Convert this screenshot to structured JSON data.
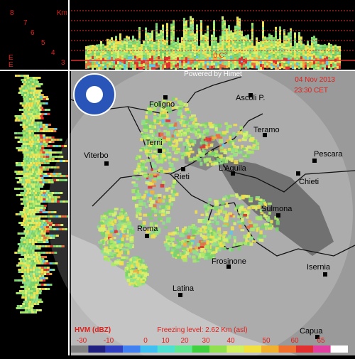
{
  "header": {
    "powered": "Powered by Himet",
    "date": "04 Nov 2013",
    "time": "23:30 CET"
  },
  "profile": {
    "unit": "Km",
    "heights": [
      "8",
      "7",
      "6",
      "5",
      "4",
      "3"
    ],
    "side_labels": [
      "E",
      "E"
    ],
    "freezing_mark": "0 C°"
  },
  "cities": [
    {
      "label": "Foligno"
    },
    {
      "label": "Ascoli P."
    },
    {
      "label": "Teramo"
    },
    {
      "label": "Viterbo"
    },
    {
      "label": "Terni"
    },
    {
      "label": "Rieti"
    },
    {
      "label": "L'Aquila"
    },
    {
      "label": "Pescara"
    },
    {
      "label": "Chieti"
    },
    {
      "label": "Roma"
    },
    {
      "label": "Sulmona"
    },
    {
      "label": "Frosinone"
    },
    {
      "label": "Isernia"
    },
    {
      "label": "Latina"
    },
    {
      "label": "Capua"
    }
  ],
  "legend": {
    "title": "HVM (dBZ)",
    "freezing": "Freezing level: 2.62 Km (asl)",
    "scale": [
      -30,
      -10,
      0,
      10,
      20,
      30,
      40,
      50,
      60,
      65
    ]
  }
}
